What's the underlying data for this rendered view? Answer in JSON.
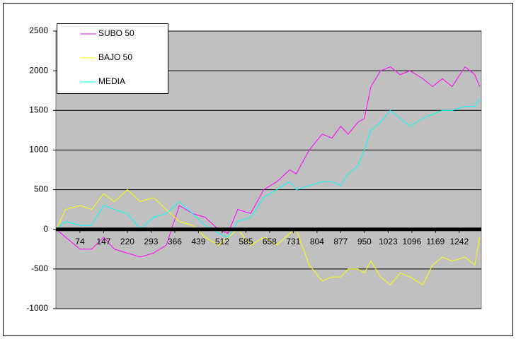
{
  "chart_data": {
    "type": "line",
    "x": [
      1,
      30,
      74,
      110,
      147,
      180,
      220,
      260,
      300,
      340,
      380,
      420,
      460,
      500,
      530,
      560,
      600,
      640,
      680,
      720,
      740,
      780,
      820,
      850,
      877,
      900,
      930,
      950,
      970,
      1000,
      1030,
      1060,
      1090,
      1130,
      1160,
      1190,
      1220,
      1260,
      1290,
      1305
    ],
    "series": [
      {
        "name": "SUBO 50",
        "color": "#ff00ff",
        "values": [
          0,
          -100,
          -250,
          -250,
          -100,
          -250,
          -300,
          -350,
          -300,
          -200,
          300,
          200,
          150,
          0,
          -50,
          250,
          200,
          500,
          600,
          750,
          700,
          1000,
          1200,
          1150,
          1300,
          1200,
          1350,
          1400,
          1800,
          2000,
          2050,
          1950,
          2000,
          1900,
          1800,
          1900,
          1800,
          2050,
          1950,
          1800
        ]
      },
      {
        "name": "BAJO 50",
        "color": "#ffff00",
        "values": [
          0,
          250,
          300,
          250,
          450,
          350,
          500,
          350,
          400,
          250,
          100,
          50,
          -100,
          -200,
          -100,
          0,
          -200,
          -100,
          -200,
          -50,
          0,
          -450,
          -650,
          -600,
          -600,
          -500,
          -500,
          -550,
          -400,
          -600,
          -700,
          -550,
          -600,
          -700,
          -450,
          -350,
          -400,
          -350,
          -450,
          -100
        ]
      },
      {
        "name": "MEDIA",
        "color": "#00ffff",
        "values": [
          0,
          100,
          50,
          50,
          300,
          250,
          200,
          0,
          150,
          200,
          350,
          200,
          50,
          -50,
          -100,
          100,
          150,
          400,
          500,
          600,
          500,
          550,
          600,
          600,
          550,
          700,
          800,
          1000,
          1250,
          1350,
          1500,
          1400,
          1300,
          1400,
          1450,
          1500,
          1500,
          1550,
          1550,
          1650
        ]
      }
    ],
    "xlim": [
      0,
      1310
    ],
    "xticks": [
      74,
      147,
      220,
      293,
      366,
      439,
      512,
      585,
      658,
      731,
      804,
      877,
      950,
      1023,
      1096,
      1169,
      1242
    ],
    "ylim": [
      -1000,
      2500
    ],
    "yticks": [
      -1000,
      -500,
      0,
      500,
      1000,
      1500,
      2000,
      2500
    ],
    "grid": true,
    "legend": "top-left"
  }
}
